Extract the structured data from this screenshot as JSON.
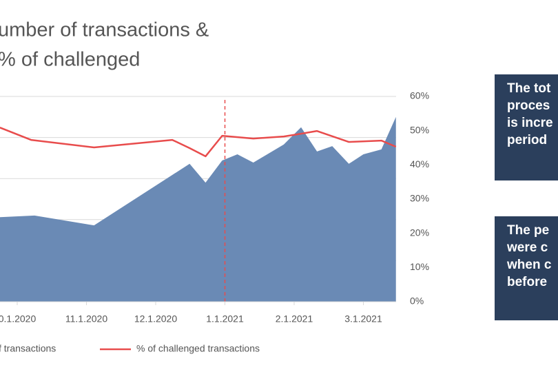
{
  "chart_data": {
    "type": "area-line",
    "title_lines": [
      "umber of transactions &",
      "% of challenged"
    ],
    "xlim": [
      -0.25,
      5.47
    ],
    "xticks": [
      {
        "value": 0,
        "label": "0.1.2020"
      },
      {
        "value": 1,
        "label": "11.1.2020"
      },
      {
        "value": 2,
        "label": "12.1.2020"
      },
      {
        "value": 3,
        "label": "1.1.2021"
      },
      {
        "value": 4,
        "label": "2.1.2021"
      },
      {
        "value": 5,
        "label": "3.1.2021"
      }
    ],
    "ylim": [
      0,
      5
    ],
    "yticks": [
      1,
      2,
      3,
      4,
      5
    ],
    "y2lim": [
      0,
      60
    ],
    "y2ticks": [
      {
        "value": 0,
        "label": "0%"
      },
      {
        "value": 10,
        "label": "10%"
      },
      {
        "value": 20,
        "label": "20%"
      },
      {
        "value": 30,
        "label": "30%"
      },
      {
        "value": 40,
        "label": "40%"
      },
      {
        "value": 50,
        "label": "50%"
      },
      {
        "value": 60,
        "label": "60%"
      }
    ],
    "grid": true,
    "marker_x": 3,
    "series": [
      {
        "name": "f transactions",
        "kind": "area",
        "color": "#6a8ab5",
        "x": [
          -0.25,
          0.25,
          1.11,
          2.49,
          2.72,
          2.96,
          3.18,
          3.41,
          3.85,
          4.1,
          4.33,
          4.55,
          4.79,
          5.0,
          5.26,
          5.47
        ],
        "values": [
          2.06,
          2.1,
          1.86,
          3.36,
          2.9,
          3.44,
          3.59,
          3.39,
          3.83,
          4.25,
          3.66,
          3.79,
          3.36,
          3.59,
          3.71,
          4.5
        ]
      },
      {
        "name": "% of challenged transactions",
        "kind": "line",
        "axis": "y2",
        "color": "#e84c4c",
        "x": [
          -0.25,
          0.2,
          1.11,
          2.24,
          2.49,
          2.72,
          2.96,
          3.41,
          3.85,
          4.1,
          4.33,
          4.79,
          5.26,
          5.47
        ],
        "values": [
          50.9,
          47.3,
          45.1,
          47.3,
          44.9,
          42.5,
          48.5,
          47.7,
          48.3,
          49.1,
          49.9,
          46.7,
          47.1,
          45.3
        ]
      }
    ]
  },
  "boxes": [
    {
      "lines": [
        "The tot",
        "proces",
        "is incre",
        "period"
      ]
    },
    {
      "lines": [
        "The pe",
        "were c",
        "when c",
        "before"
      ]
    }
  ]
}
